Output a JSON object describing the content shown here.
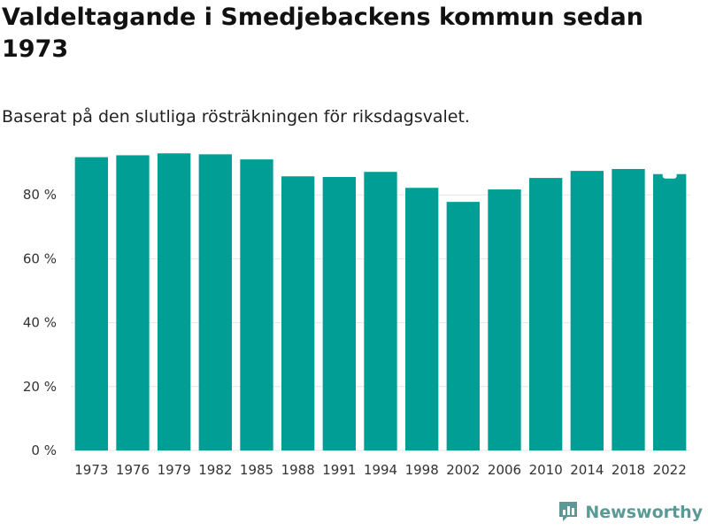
{
  "title": "Valdeltagande i Smedjebackens kommun sedan 1973",
  "subtitle": "Baserat på den slutliga rösträkningen för riksdagsvalet.",
  "brand": {
    "name": "Newsworthy",
    "icon": "newsworthy-logo-icon",
    "color": "#5a9a96"
  },
  "colors": {
    "bar": "#009e95",
    "grid": "#e6e6e6",
    "highlight_marker": "#ffffff"
  },
  "chart_data": {
    "type": "bar",
    "title": "Valdeltagande i Smedjebackens kommun sedan 1973",
    "subtitle": "Baserat på den slutliga rösträkningen för riksdagsvalet.",
    "xlabel": "",
    "ylabel": "",
    "categories": [
      "1973",
      "1976",
      "1979",
      "1982",
      "1985",
      "1988",
      "1991",
      "1994",
      "1998",
      "2002",
      "2006",
      "2010",
      "2014",
      "2018",
      "2022"
    ],
    "values": [
      91.8,
      92.4,
      93.0,
      92.7,
      91.1,
      85.8,
      85.6,
      87.2,
      82.2,
      77.8,
      81.7,
      85.3,
      87.5,
      88.1,
      86.5
    ],
    "ylim": [
      0,
      100
    ],
    "yticks": [
      0,
      20,
      40,
      60,
      80
    ],
    "ytick_labels": [
      "0 %",
      "20 %",
      "40 %",
      "60 %",
      "80 %"
    ],
    "grid": true,
    "highlight_index": 14
  }
}
